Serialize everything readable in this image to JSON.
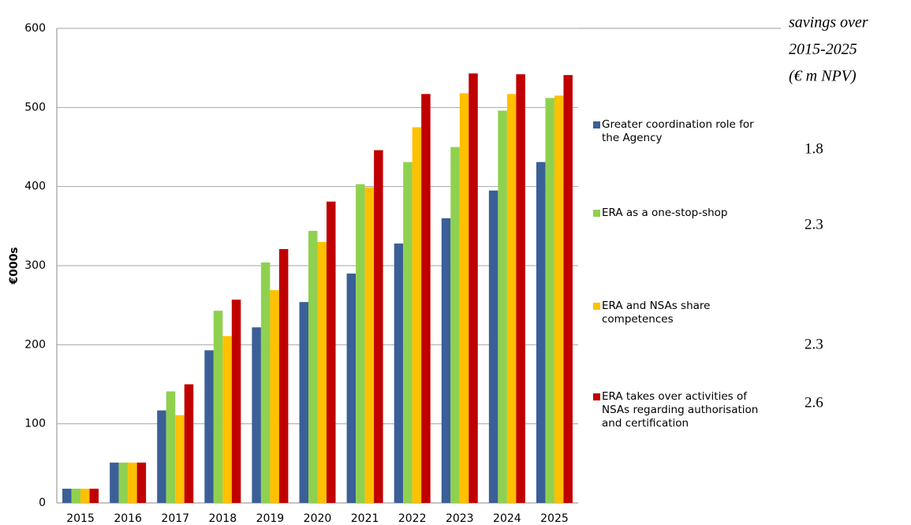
{
  "chart_data": {
    "type": "bar",
    "y_label": "€000s",
    "categories": [
      "2015",
      "2016",
      "2017",
      "2018",
      "2019",
      "2020",
      "2021",
      "2022",
      "2023",
      "2024",
      "2025"
    ],
    "series": [
      {
        "name": "Greater coordination role for the Agency",
        "color": "#3b5f97",
        "savings": 1.8,
        "values": [
          18,
          51,
          117,
          193,
          222,
          254,
          290,
          328,
          360,
          395,
          431
        ]
      },
      {
        "name": "ERA as a one-stop-shop",
        "color": "#8fd14f",
        "savings": 2.3,
        "values": [
          18,
          51,
          141,
          243,
          304,
          344,
          403,
          431,
          450,
          496,
          512
        ]
      },
      {
        "name": "ERA and NSAs share competences",
        "color": "#ffc000",
        "savings": 2.3,
        "values": [
          18,
          51,
          111,
          211,
          269,
          330,
          399,
          475,
          518,
          517,
          515
        ]
      },
      {
        "name": "ERA takes over activities of NSAs regarding authorisation and certification",
        "color": "#c00000",
        "savings": 2.6,
        "values": [
          18,
          51,
          150,
          257,
          321,
          381,
          446,
          517,
          543,
          542,
          541
        ]
      }
    ],
    "savings_title": [
      "savings over",
      "2015-2025",
      "(€ m NPV)"
    ],
    "ylim": [
      0,
      600
    ],
    "yticks": [
      0,
      100,
      200,
      300,
      400,
      500,
      600
    ],
    "grid": true
  }
}
